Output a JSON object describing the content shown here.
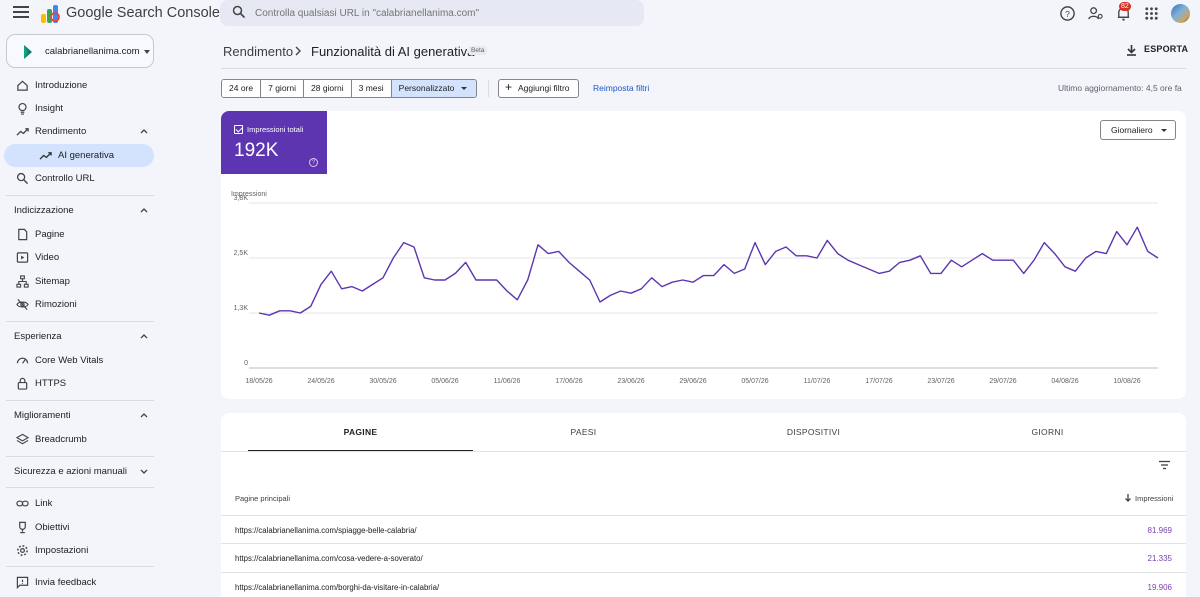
{
  "header": {
    "app_title": "Google Search Console",
    "search_placeholder": "Controlla qualsiasi URL in \"calabrianellanima.com\"",
    "notification_count": "82"
  },
  "sidebar": {
    "property": "calabrianellanima.com",
    "top_items": [
      {
        "label": "Introduzione",
        "icon": "home-icon"
      },
      {
        "label": "Insight",
        "icon": "lightbulb-icon"
      },
      {
        "label": "Rendimento",
        "icon": "trending-icon"
      },
      {
        "label": "AI generativa",
        "icon": "trending-icon"
      },
      {
        "label": "Controllo URL",
        "icon": "search-icon"
      }
    ],
    "sections": [
      {
        "title": "Indicizzazione",
        "items": [
          {
            "label": "Pagine",
            "icon": "pages-icon"
          },
          {
            "label": "Video",
            "icon": "video-icon"
          },
          {
            "label": "Sitemap",
            "icon": "sitemap-icon"
          },
          {
            "label": "Rimozioni",
            "icon": "eye-off-icon"
          }
        ]
      },
      {
        "title": "Esperienza",
        "items": [
          {
            "label": "Core Web Vitals",
            "icon": "speed-icon"
          },
          {
            "label": "HTTPS",
            "icon": "lock-icon"
          }
        ]
      },
      {
        "title": "Miglioramenti",
        "items": [
          {
            "label": "Breadcrumb",
            "icon": "layers-icon"
          }
        ]
      },
      {
        "title": "Sicurezza e azioni manuali",
        "items": []
      }
    ],
    "bottom_items": [
      {
        "label": "Link",
        "icon": "link-icon"
      },
      {
        "label": "Obiettivi",
        "icon": "trophy-icon"
      },
      {
        "label": "Impostazioni",
        "icon": "gear-icon"
      },
      {
        "label": "Invia feedback",
        "icon": "feedback-icon"
      }
    ]
  },
  "main": {
    "breadcrumb": "Rendimento",
    "title": "Funzionalità di AI generativa",
    "beta": "Beta",
    "export": "ESPORTA",
    "ranges": [
      "24 ore",
      "7 giorni",
      "28 giorni",
      "3 mesi",
      "Personalizzato"
    ],
    "add_filter": "Aggiungi filtro",
    "reset_filters": "Reimposta filtri",
    "last_update": "Ultimo aggiornamento: 4,5 ore fa",
    "metric_label": "Impressioni totali",
    "metric_value": "192K",
    "granularity": "Giornaliero"
  },
  "chart_data": {
    "type": "line",
    "ylabel": "Impressioni",
    "y_ticks": [
      "0",
      "1,3K",
      "2,5K",
      "3,8K"
    ],
    "y_tick_values": [
      0,
      1250,
      2500,
      3750
    ],
    "ylim": [
      0,
      3750
    ],
    "x_tick_labels": [
      "18/05/26",
      "24/05/26",
      "30/05/26",
      "05/06/26",
      "11/06/26",
      "17/06/26",
      "23/06/26",
      "29/06/26",
      "05/07/26",
      "11/07/26",
      "17/07/26",
      "23/07/26",
      "29/07/26",
      "04/08/26",
      "10/08/26"
    ],
    "x_start": "18/05/26",
    "values": [
      1250,
      1200,
      1300,
      1300,
      1250,
      1400,
      1900,
      2200,
      1800,
      1850,
      1750,
      1900,
      2050,
      2500,
      2850,
      2750,
      2050,
      2000,
      2000,
      2150,
      2400,
      2000,
      2000,
      2000,
      1750,
      1550,
      2000,
      2800,
      2600,
      2650,
      2400,
      2200,
      2000,
      1500,
      1650,
      1750,
      1700,
      1800,
      2050,
      1850,
      1950,
      2000,
      1950,
      2100,
      2100,
      2350,
      2150,
      2250,
      2850,
      2350,
      2650,
      2750,
      2550,
      2550,
      2500,
      2900,
      2600,
      2450,
      2350,
      2250,
      2150,
      2200,
      2400,
      2450,
      2550,
      2150,
      2150,
      2450,
      2300,
      2450,
      2600,
      2450,
      2450,
      2450,
      2150,
      2450,
      2850,
      2600,
      2300,
      2200,
      2500,
      2650,
      2600,
      3100,
      2800,
      3200,
      2650,
      2500
    ],
    "grid": true,
    "color": "#5e35b1"
  },
  "table": {
    "tabs": [
      "PAGINE",
      "PAESI",
      "DISPOSITIVI",
      "GIORNI"
    ],
    "col_left": "Pagine principali",
    "col_right": "Impressioni",
    "rows": [
      {
        "url": "https://calabrianellanima.com/spiagge-belle-calabria/",
        "value": "81.969"
      },
      {
        "url": "https://calabrianellanima.com/cosa-vedere-a-soverato/",
        "value": "21.335"
      },
      {
        "url": "https://calabrianellanima.com/borghi-da-visitare-in-calabria/",
        "value": "19.906"
      }
    ]
  }
}
